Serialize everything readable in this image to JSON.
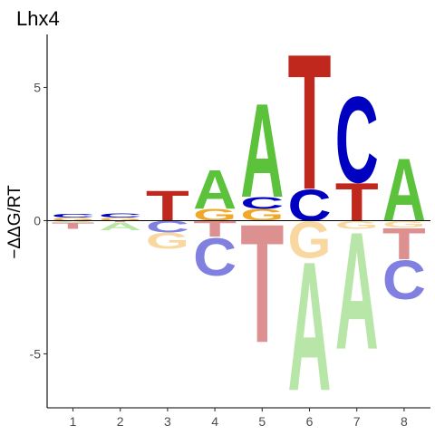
{
  "chart_data": {
    "type": "sequence-logo",
    "title": "Lhx4",
    "xlabel": "",
    "ylabel": "−ΔΔG/RT",
    "x_ticks": [
      "1",
      "2",
      "3",
      "4",
      "5",
      "6",
      "7",
      "8"
    ],
    "y_ticks": [
      -5,
      0,
      5
    ],
    "ylim": [
      -7,
      7
    ],
    "colors": {
      "A_pos": "#5cc23b",
      "C_pos": "#0000c0",
      "G_pos": "#f0a828",
      "T_pos": "#c0281e",
      "A_neg": "#b8e6a8",
      "C_neg": "#8080e0",
      "G_neg": "#f8d8a0",
      "T_neg": "#dc9090"
    },
    "positions": [
      {
        "pos": 1,
        "positive": [
          {
            "base": "G",
            "value": 0.12
          },
          {
            "base": "C",
            "value": 0.14
          }
        ],
        "negative": [
          {
            "base": "A",
            "value": 0.05
          },
          {
            "base": "T",
            "value": 0.25
          }
        ]
      },
      {
        "pos": 2,
        "positive": [
          {
            "base": "G",
            "value": 0.12
          },
          {
            "base": "C",
            "value": 0.16
          }
        ],
        "negative": [
          {
            "base": "T",
            "value": 0.05
          },
          {
            "base": "A",
            "value": 0.3
          }
        ]
      },
      {
        "pos": 3,
        "positive": [
          {
            "base": "T",
            "value": 1.15
          }
        ],
        "negative": [
          {
            "base": "C",
            "value": 0.45
          },
          {
            "base": "G",
            "value": 0.6
          }
        ]
      },
      {
        "pos": 4,
        "positive": [
          {
            "base": "G",
            "value": 0.45
          },
          {
            "base": "A",
            "value": 1.5
          }
        ],
        "negative": [
          {
            "base": "T",
            "value": 0.6
          },
          {
            "base": "C",
            "value": 1.45
          }
        ]
      },
      {
        "pos": 5,
        "positive": [
          {
            "base": "G",
            "value": 0.45
          },
          {
            "base": "C",
            "value": 0.45
          },
          {
            "base": "A",
            "value": 3.6
          }
        ],
        "negative": [
          {
            "base": "T",
            "value": 4.55
          }
        ]
      },
      {
        "pos": 6,
        "positive": [
          {
            "base": "C",
            "value": 1.2
          },
          {
            "base": "T",
            "value": 5.2
          }
        ],
        "negative": [
          {
            "base": "G",
            "value": 1.4
          },
          {
            "base": "A",
            "value": 4.95
          }
        ]
      },
      {
        "pos": 7,
        "positive": [
          {
            "base": "T",
            "value": 1.45
          },
          {
            "base": "C",
            "value": 3.3
          }
        ],
        "negative": [
          {
            "base": "G",
            "value": 0.3
          },
          {
            "base": "A",
            "value": 4.5
          }
        ]
      },
      {
        "pos": 8,
        "positive": [
          {
            "base": "A",
            "value": 2.4
          }
        ],
        "negative": [
          {
            "base": "G",
            "value": 0.25
          },
          {
            "base": "T",
            "value": 1.2
          },
          {
            "base": "C",
            "value": 1.5
          }
        ]
      }
    ]
  }
}
